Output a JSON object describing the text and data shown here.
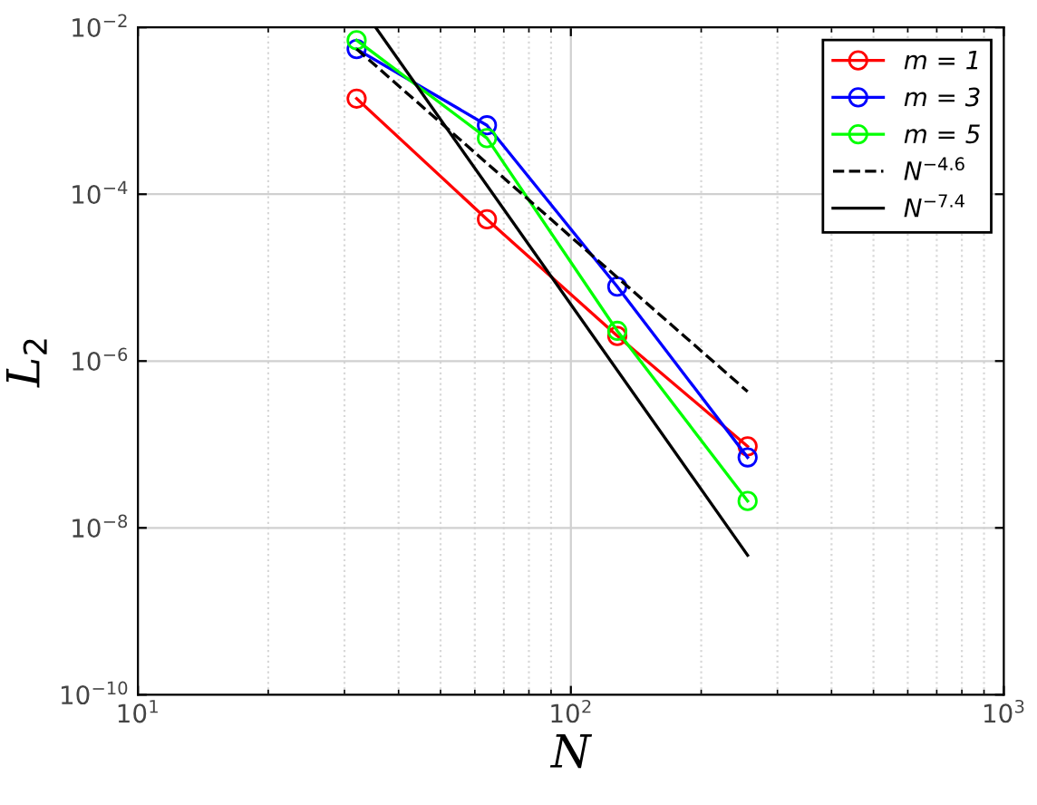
{
  "chart_data": {
    "type": "line",
    "xlabel": "N",
    "ylabel": "L$_{2}$",
    "log": "xy",
    "xlim": [
      10,
      1000
    ],
    "xticks": [
      {
        "value": 10,
        "label": "10$^{1}$"
      },
      {
        "value": 100,
        "label": "10$^{2}$"
      },
      {
        "value": 1000,
        "label": "10$^{3}$"
      }
    ],
    "ylim": [
      1e-10,
      0.01
    ],
    "yticks": [
      {
        "value": 1e-10,
        "label": "10$^{−10}$"
      },
      {
        "value": 1e-08,
        "label": "10$^{−8}$"
      },
      {
        "value": 1e-06,
        "label": "10$^{−6}$"
      },
      {
        "value": 0.0001,
        "label": "10$^{−4}$"
      },
      {
        "value": 0.01,
        "label": "10$^{−2}$"
      }
    ],
    "grid": true,
    "legend": "top right",
    "series": [
      {
        "name": "m = 1",
        "color": "#ff0000",
        "x": [
          32,
          64,
          128,
          256
        ],
        "values": [
          0.0014,
          5e-05,
          2e-06,
          9.5e-08
        ],
        "marker": "circle",
        "line_style": "solid"
      },
      {
        "name": "m = 3",
        "color": "#0000ff",
        "x": [
          32,
          64,
          128,
          256
        ],
        "values": [
          0.0055,
          0.00067,
          7.8e-06,
          7e-08
        ],
        "marker": "circle",
        "line_style": "solid"
      },
      {
        "name": "m = 5",
        "color": "#00ff00",
        "x": [
          32,
          64,
          128,
          256
        ],
        "values": [
          0.007,
          0.00047,
          2.3e-06,
          2.1e-08
        ],
        "marker": "circle",
        "line_style": "solid"
      },
      {
        "name": "N$^{−4.6}$",
        "color": "#000000",
        "x": [
          32,
          256
        ],
        "values": [
          0.0055,
          4.3e-07
        ],
        "marker": "none",
        "line_style": "dashed"
      },
      {
        "name": "N$^{−7.4}$",
        "color": "#000000",
        "x": [
          35.4,
          256
        ],
        "values": [
          0.01,
          4.7e-09
        ],
        "marker": "none",
        "line_style": "solid"
      }
    ]
  }
}
